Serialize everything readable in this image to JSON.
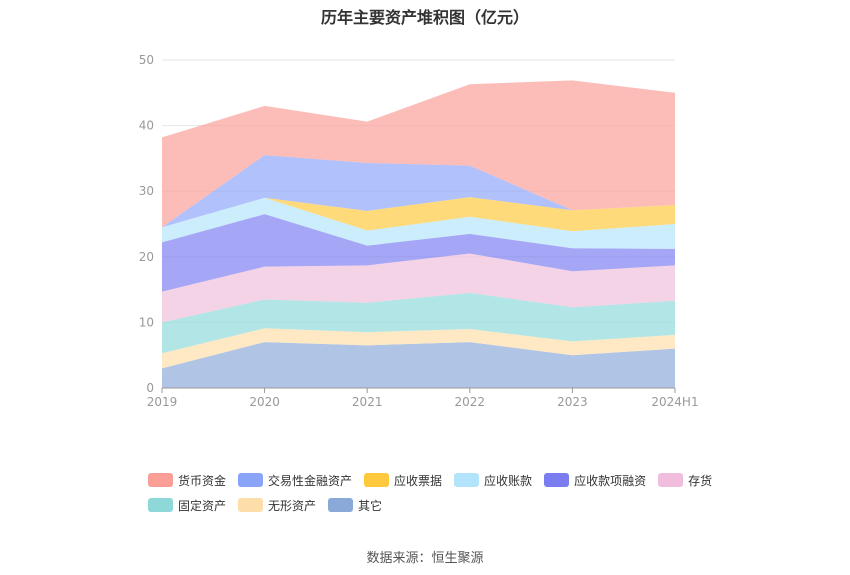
{
  "chart_data": {
    "type": "area",
    "stacked": true,
    "title": "历年主要资产堆积图（亿元）",
    "x": [
      "2019",
      "2020",
      "2021",
      "2022",
      "2023",
      "2024H1"
    ],
    "ylim": [
      0,
      50
    ],
    "yticks": [
      0,
      10,
      20,
      30,
      40,
      50
    ],
    "grid": true,
    "legend_position": "bottom",
    "series": [
      {
        "name": "其它",
        "color": "#8aa8d8",
        "values": [
          3.0,
          7.0,
          6.5,
          7.0,
          5.0,
          6.0
        ]
      },
      {
        "name": "无形资产",
        "color": "#fddea8",
        "values": [
          2.3,
          2.1,
          2.0,
          2.0,
          2.1,
          2.1
        ]
      },
      {
        "name": "固定资产",
        "color": "#8ed8d9",
        "values": [
          4.7,
          4.4,
          4.5,
          5.5,
          5.2,
          5.2
        ]
      },
      {
        "name": "存货",
        "color": "#f0bedc",
        "values": [
          4.7,
          5.0,
          5.7,
          6.0,
          5.5,
          5.4
        ]
      },
      {
        "name": "应收款项融资",
        "color": "#7b7cf0",
        "values": [
          7.5,
          8.0,
          3.0,
          3.0,
          3.5,
          2.5
        ]
      },
      {
        "name": "应收账款",
        "color": "#b4e4fb",
        "values": [
          2.3,
          2.5,
          2.3,
          2.6,
          2.6,
          3.8
        ]
      },
      {
        "name": "应收票据",
        "color": "#ffc93d",
        "values": [
          0.0,
          0.0,
          3.0,
          3.0,
          3.2,
          2.9
        ]
      },
      {
        "name": "交易性金融资产",
        "color": "#8aa4fa",
        "values": [
          0.0,
          6.5,
          7.3,
          4.8,
          0.0,
          0.0
        ]
      },
      {
        "name": "货币资金",
        "color": "#fa9e96",
        "values": [
          13.7,
          7.5,
          6.3,
          12.4,
          19.8,
          17.1
        ]
      }
    ]
  },
  "legend_order": [
    "货币资金",
    "交易性金融资产",
    "应收票据",
    "应收账款",
    "应收款项融资",
    "存货",
    "固定资产",
    "无形资产",
    "其它"
  ],
  "source": "数据来源：恒生聚源"
}
